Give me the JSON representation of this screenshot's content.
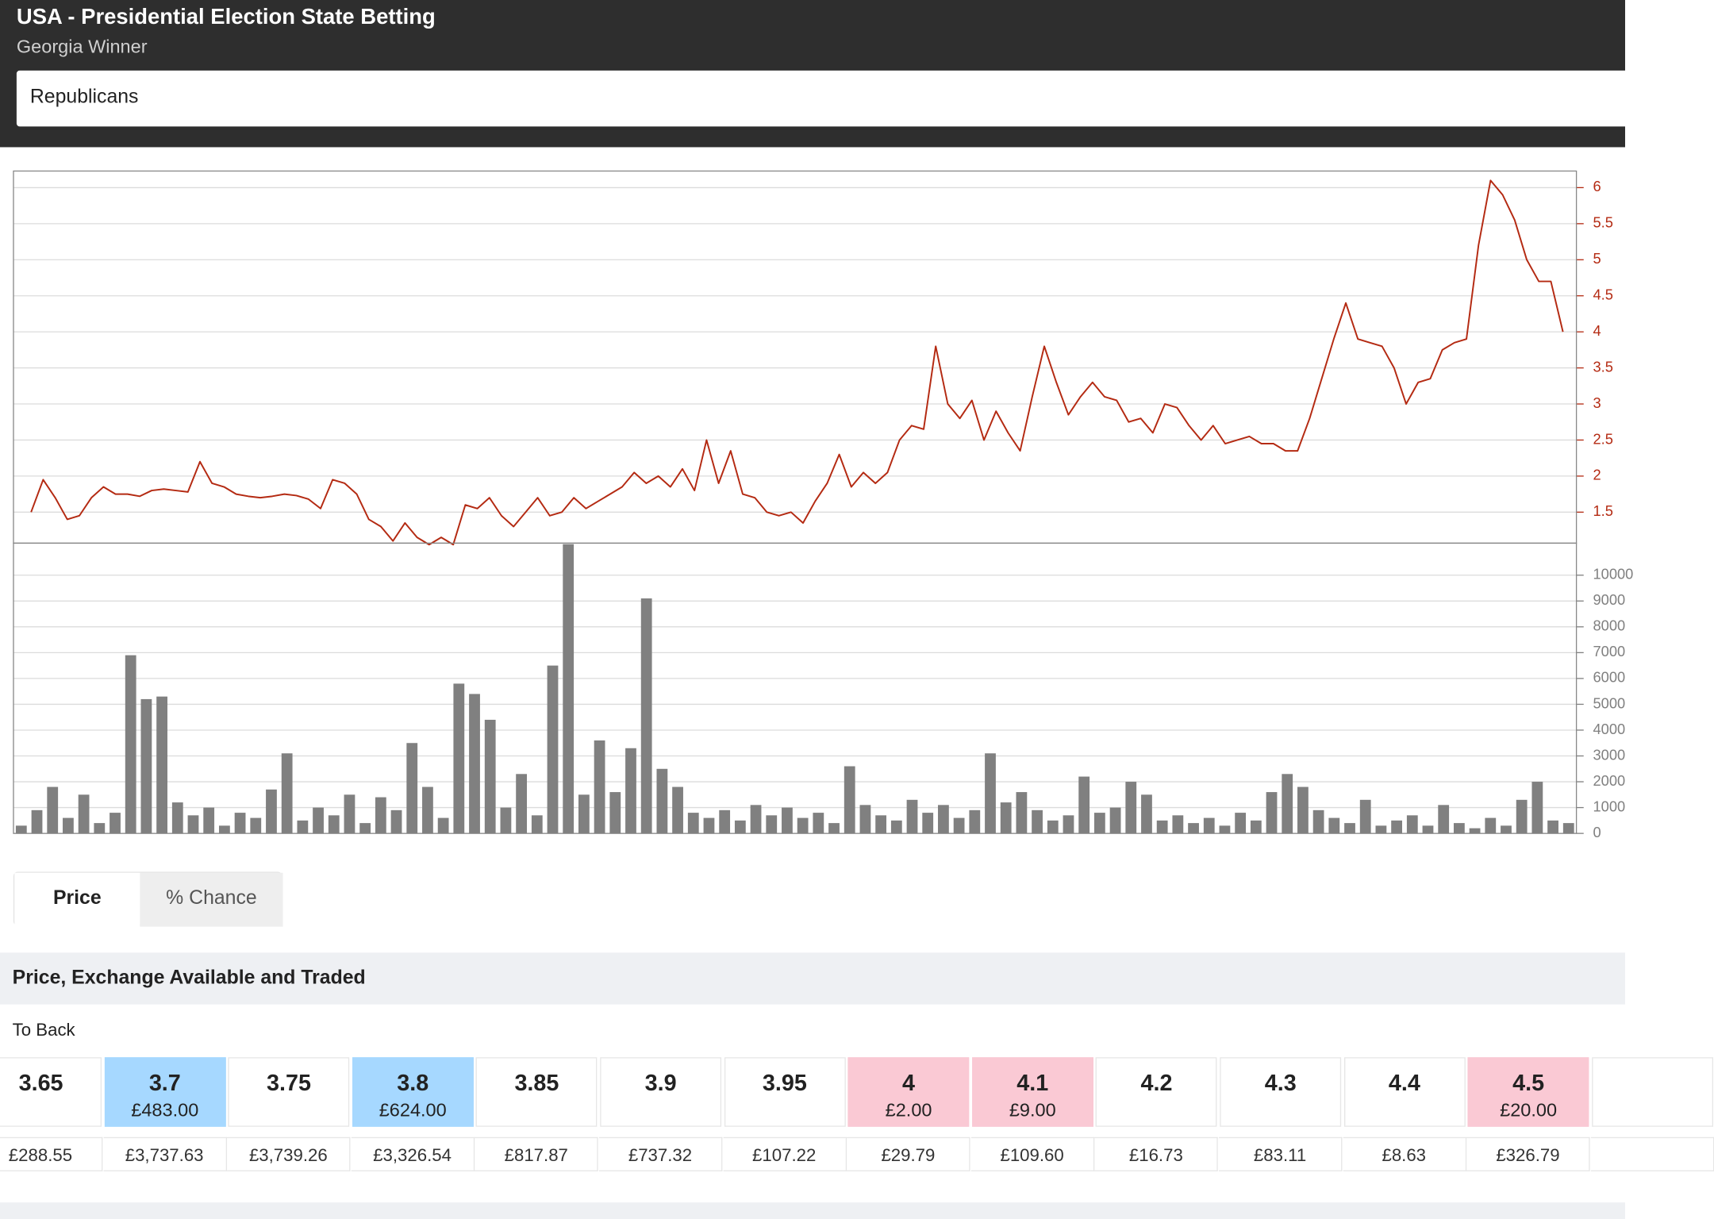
{
  "header": {
    "title": "USA - Presidential Election State Betting",
    "subtitle": "Georgia Winner",
    "selection": "Republicans"
  },
  "chart_data": [
    {
      "type": "line",
      "color": "#b42a12",
      "grid": true,
      "ylim": [
        1.07,
        6.23
      ],
      "yticks": [
        1.5,
        2,
        2.5,
        3,
        3.5,
        4,
        4.5,
        5,
        5.5,
        6
      ],
      "values": [
        1.5,
        1.95,
        1.7,
        1.4,
        1.45,
        1.7,
        1.85,
        1.75,
        1.75,
        1.72,
        1.8,
        1.82,
        1.8,
        1.78,
        2.2,
        1.9,
        1.85,
        1.75,
        1.72,
        1.7,
        1.72,
        1.75,
        1.73,
        1.68,
        1.55,
        1.95,
        1.9,
        1.75,
        1.4,
        1.3,
        1.1,
        1.35,
        1.15,
        1.05,
        1.15,
        1.05,
        1.6,
        1.55,
        1.7,
        1.45,
        1.3,
        1.5,
        1.7,
        1.45,
        1.5,
        1.7,
        1.55,
        1.65,
        1.75,
        1.85,
        2.05,
        1.9,
        2.0,
        1.85,
        2.1,
        1.8,
        2.5,
        1.9,
        2.35,
        1.75,
        1.7,
        1.5,
        1.45,
        1.5,
        1.35,
        1.65,
        1.9,
        2.3,
        1.85,
        2.05,
        1.9,
        2.05,
        2.5,
        2.7,
        2.65,
        3.8,
        3.0,
        2.8,
        3.05,
        2.5,
        2.9,
        2.6,
        2.35,
        3.1,
        3.8,
        3.3,
        2.85,
        3.1,
        3.3,
        3.1,
        3.05,
        2.75,
        2.8,
        2.6,
        3.0,
        2.95,
        2.7,
        2.5,
        2.7,
        2.45,
        2.5,
        2.55,
        2.45,
        2.45,
        2.35,
        2.35,
        2.8,
        3.35,
        3.9,
        4.4,
        3.9,
        3.85,
        3.8,
        3.5,
        3.0,
        3.3,
        3.35,
        3.75,
        3.85,
        3.9,
        5.2,
        6.1,
        5.9,
        5.55,
        5.0,
        4.7,
        4.7,
        4.0
      ]
    },
    {
      "type": "bar",
      "color": "#808080",
      "grid": true,
      "ylim": [
        0,
        11240
      ],
      "yticks": [
        0,
        1000,
        2000,
        3000,
        4000,
        5000,
        6000,
        7000,
        8000,
        9000,
        10000
      ],
      "values": [
        300,
        900,
        1800,
        600,
        1500,
        400,
        800,
        6900,
        5200,
        5300,
        1200,
        700,
        1000,
        300,
        800,
        600,
        1700,
        3100,
        500,
        1000,
        700,
        1500,
        400,
        1400,
        900,
        3500,
        1800,
        600,
        5800,
        5400,
        4400,
        1000,
        2300,
        700,
        6500,
        11200,
        1500,
        3600,
        1600,
        3300,
        9100,
        2500,
        1800,
        800,
        600,
        900,
        500,
        1100,
        700,
        1000,
        600,
        800,
        400,
        2600,
        1100,
        700,
        500,
        1300,
        800,
        1100,
        600,
        900,
        3100,
        1200,
        1600,
        900,
        500,
        700,
        2200,
        800,
        1000,
        2000,
        1500,
        500,
        700,
        400,
        600,
        300,
        800,
        500,
        1600,
        2300,
        1800,
        900,
        600,
        400,
        1300,
        300,
        500,
        700,
        300,
        1100,
        400,
        200,
        600,
        300,
        1300,
        2000,
        500,
        400
      ]
    }
  ],
  "toggle": [
    "Price",
    "% Chance"
  ],
  "section_title": "Price, Exchange Available and Traded",
  "ladder": {
    "label": "To Back",
    "cells": [
      {
        "price": "3.65",
        "traded": "£288.55"
      },
      {
        "price": "3.7",
        "available": "£483.00",
        "traded": "£3,737.63",
        "color": "#a6d8ff"
      },
      {
        "price": "3.75",
        "traded": "£3,739.26"
      },
      {
        "price": "3.8",
        "available": "£624.00",
        "traded": "£3,326.54",
        "color": "#a6d8ff"
      },
      {
        "price": "3.85",
        "traded": "£817.87"
      },
      {
        "price": "3.9",
        "traded": "£737.32"
      },
      {
        "price": "3.95",
        "traded": "£107.22"
      },
      {
        "price": "4",
        "available": "£2.00",
        "traded": "£29.79",
        "color": "#fac9d4"
      },
      {
        "price": "4.1",
        "available": "£9.00",
        "traded": "£109.60",
        "color": "#fac9d4"
      },
      {
        "price": "4.2",
        "traded": "£16.73"
      },
      {
        "price": "4.3",
        "traded": "£83.11"
      },
      {
        "price": "4.4",
        "traded": "£8.63"
      },
      {
        "price": "4.5",
        "available": "£20.00",
        "traded": "£326.79",
        "color": "#fac9d4"
      }
    ]
  }
}
